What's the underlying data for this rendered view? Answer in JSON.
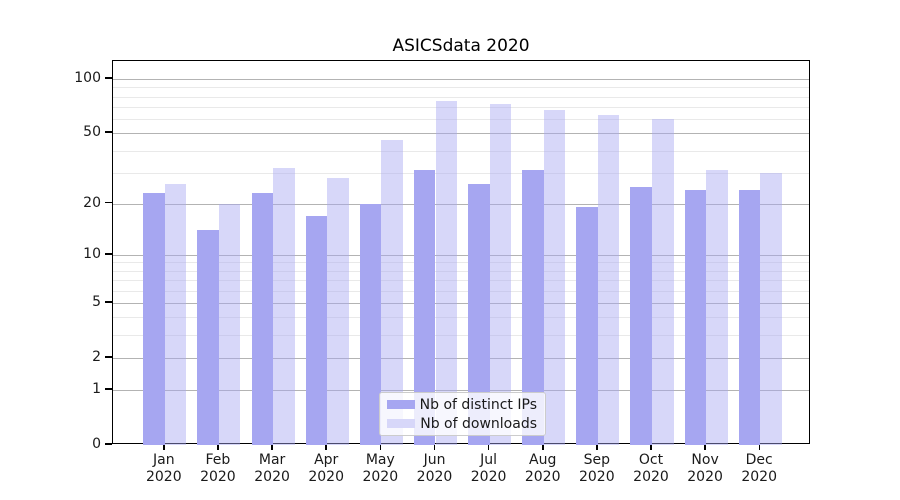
{
  "figure": {
    "title": "ASICSdata 2020"
  },
  "chart_data": {
    "type": "bar",
    "title": "ASICSdata 2020",
    "categories": [
      {
        "month": "Jan",
        "year": "2020"
      },
      {
        "month": "Feb",
        "year": "2020"
      },
      {
        "month": "Mar",
        "year": "2020"
      },
      {
        "month": "Apr",
        "year": "2020"
      },
      {
        "month": "May",
        "year": "2020"
      },
      {
        "month": "Jun",
        "year": "2020"
      },
      {
        "month": "Jul",
        "year": "2020"
      },
      {
        "month": "Aug",
        "year": "2020"
      },
      {
        "month": "Sep",
        "year": "2020"
      },
      {
        "month": "Oct",
        "year": "2020"
      },
      {
        "month": "Nov",
        "year": "2020"
      },
      {
        "month": "Dec",
        "year": "2020"
      }
    ],
    "series": [
      {
        "name": "Nb of distinct IPs",
        "color": "#a6a6f1",
        "values": [
          23,
          14,
          23,
          17,
          20,
          31,
          26,
          31,
          19,
          25,
          24,
          24
        ]
      },
      {
        "name": "Nb of downloads",
        "color": "rgba(166,166,241,0.45)",
        "swatch_color": "#d7d7f9",
        "values": [
          26,
          20,
          32,
          28,
          46,
          76,
          73,
          67,
          63,
          60,
          31,
          30
        ]
      }
    ],
    "xlabel": "",
    "ylabel": "",
    "y_ticks": [
      0,
      1,
      2,
      5,
      10,
      20,
      50,
      100
    ],
    "y_scale": "log1p",
    "ylim": [
      0,
      126
    ],
    "grid": "horizontal, major and minor",
    "legend_position": "lower center"
  },
  "colors": {
    "background": "#ffffff",
    "axis": "#000000",
    "major_grid": "#b3b3b3",
    "minor_grid": "#e9e9e9",
    "text": "#1a1a1a"
  }
}
